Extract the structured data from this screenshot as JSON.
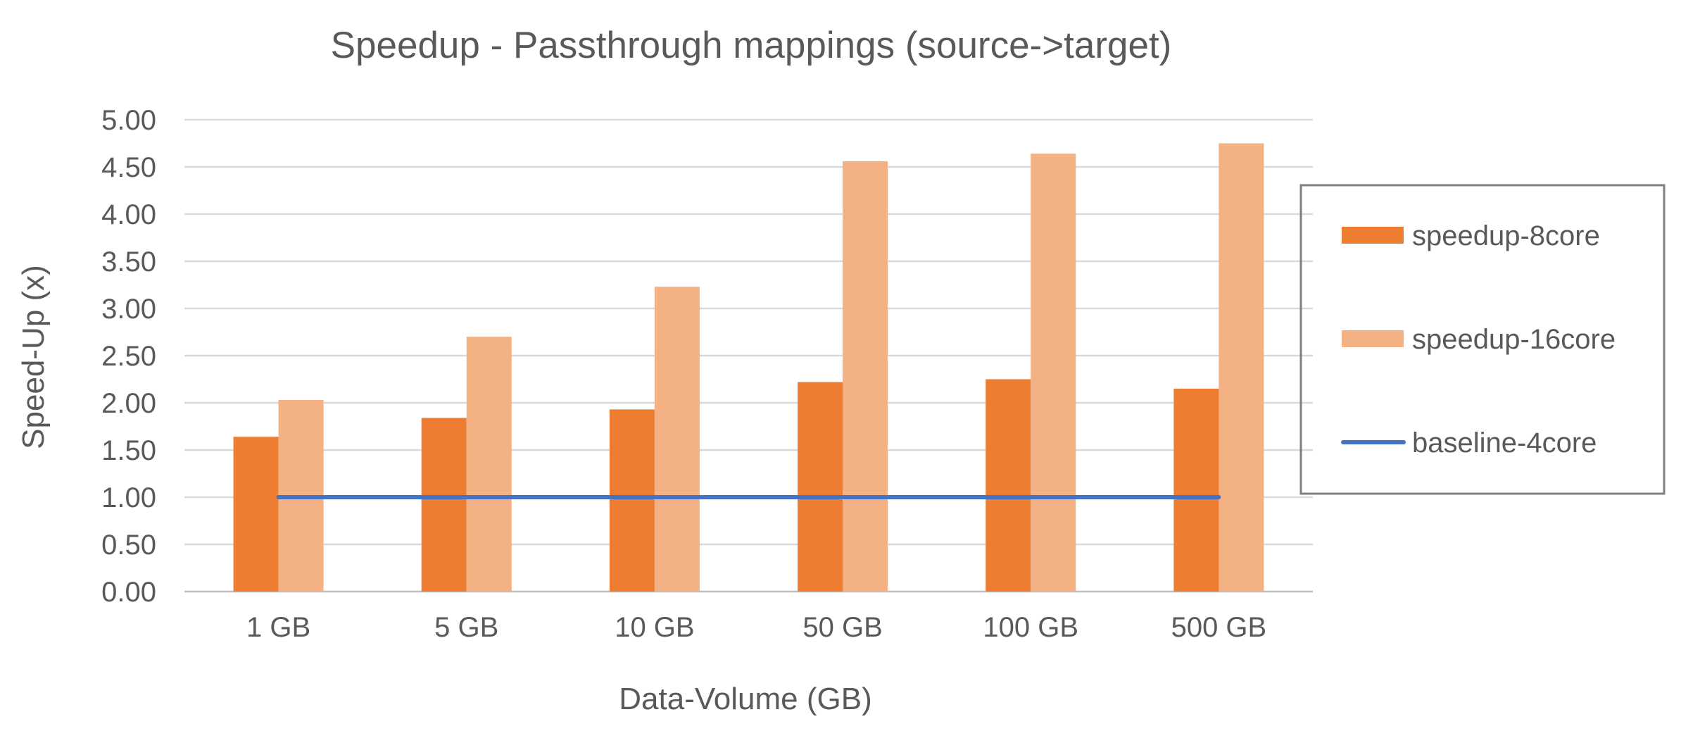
{
  "chart_data": {
    "type": "bar",
    "title": "Speedup - Passthrough mappings (source->target)",
    "xlabel": "Data-Volume (GB)",
    "ylabel": "Speed-Up (x)",
    "categories": [
      "1 GB",
      "5 GB",
      "10 GB",
      "50 GB",
      "100 GB",
      "500 GB"
    ],
    "ylim": [
      0,
      5
    ],
    "yticks": [
      "0.00",
      "0.50",
      "1.00",
      "1.50",
      "2.00",
      "2.50",
      "3.00",
      "3.50",
      "4.00",
      "4.50",
      "5.00"
    ],
    "grid": true,
    "legend_position": "right",
    "series": [
      {
        "name": "speedup-8core",
        "kind": "bar",
        "color": "#ED7D31",
        "values": [
          1.64,
          1.84,
          1.93,
          2.22,
          2.25,
          2.15
        ]
      },
      {
        "name": "speedup-16core",
        "kind": "bar",
        "color": "#F4B183",
        "values": [
          2.03,
          2.7,
          3.23,
          4.56,
          4.64,
          4.75
        ]
      },
      {
        "name": "baseline-4core",
        "kind": "line",
        "color": "#4472C4",
        "values": [
          1.0,
          1.0,
          1.0,
          1.0,
          1.0,
          1.0
        ]
      }
    ]
  }
}
